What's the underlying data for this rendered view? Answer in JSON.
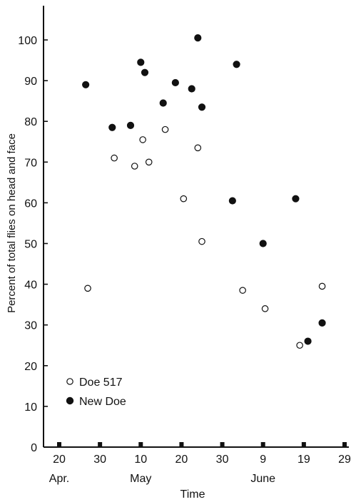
{
  "chart_data": {
    "type": "scatter",
    "title": "",
    "xlabel": "Time",
    "ylabel": "Percent of total flies on head and face",
    "ylim": [
      0,
      100
    ],
    "yticks": [
      0,
      10,
      20,
      30,
      40,
      50,
      60,
      70,
      80,
      90,
      100
    ],
    "ytick_labels": [
      "0",
      "10",
      "20",
      "30",
      "40",
      "50",
      "60",
      "70",
      "80",
      "90",
      "100"
    ],
    "x_unit": "days since Apr. 20",
    "xlim": [
      0,
      70
    ],
    "xticks": [
      0,
      10,
      20,
      30,
      40,
      50,
      60,
      70
    ],
    "xtick_labels": [
      "20",
      "30",
      "10",
      "20",
      "30",
      "9",
      "19",
      "29"
    ],
    "month_labels": [
      {
        "label": "Apr.",
        "at": 0
      },
      {
        "label": "May",
        "at": 20
      },
      {
        "label": "June",
        "at": 50
      }
    ],
    "grid": false,
    "legend_position": "bottom-left",
    "series": [
      {
        "name": "Doe 517",
        "marker": "open-circle",
        "color": "#111111",
        "points": [
          [
            7,
            39
          ],
          [
            13.5,
            71
          ],
          [
            18.5,
            69
          ],
          [
            20.5,
            75.5
          ],
          [
            22,
            70
          ],
          [
            26,
            78
          ],
          [
            30.5,
            61
          ],
          [
            34,
            73.5
          ],
          [
            35,
            50.5
          ],
          [
            45,
            38.5
          ],
          [
            50.5,
            34
          ],
          [
            59,
            25
          ],
          [
            64.5,
            39.5
          ]
        ]
      },
      {
        "name": "New Doe",
        "marker": "filled-circle",
        "color": "#111111",
        "points": [
          [
            6.5,
            89
          ],
          [
            13,
            78.5
          ],
          [
            17.5,
            79
          ],
          [
            20,
            94.5
          ],
          [
            21,
            92
          ],
          [
            25.5,
            84.5
          ],
          [
            28.5,
            89.5
          ],
          [
            32.5,
            88
          ],
          [
            34,
            100.5
          ],
          [
            35,
            83.5
          ],
          [
            42.5,
            60.5
          ],
          [
            43.5,
            94
          ],
          [
            50,
            50
          ],
          [
            58,
            61
          ],
          [
            61,
            26
          ],
          [
            64.5,
            30.5
          ]
        ]
      }
    ]
  }
}
